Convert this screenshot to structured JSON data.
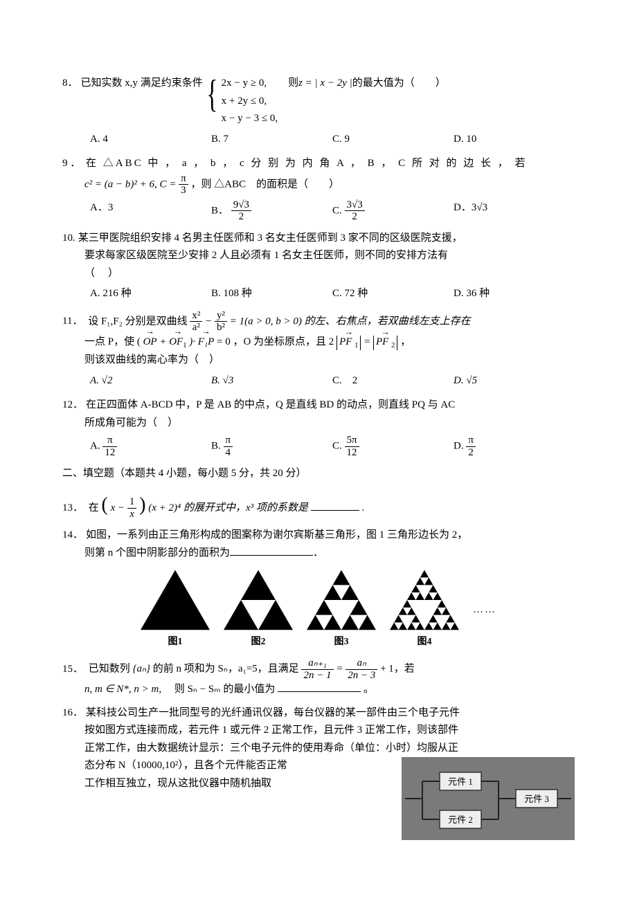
{
  "q8": {
    "num": "8．",
    "pre": "已知实数 x,y 满足约束条件",
    "sys": [
      "2x − y ≥ 0,",
      "x + 2y ≤ 0,",
      "x − y − 3 ≤ 0,"
    ],
    "mid": "　则",
    "expr": "z = | x − 2y |",
    "post": "的最大值为（　　）",
    "opts": [
      "A. 4",
      "B. 7",
      "C. 9",
      "D. 10"
    ]
  },
  "q9": {
    "num": "9 ．",
    "head": "在 △ABC 中 ， a ， b ， c 分 别 为 内 角 A ， B ， C 所 对 的 边 长 ， 若",
    "line2a": "c² = (a − b)² + 6, C = ",
    "line2_frac": {
      "n": "π",
      "d": "3"
    },
    "line2b": "，则 △ABC　的面积是（　　）",
    "optA": "A．3",
    "optB_pre": "B．",
    "optB_frac": {
      "n": "9√3",
      "d": "2"
    },
    "optC_pre": "C. ",
    "optC_frac": {
      "n": "3√3",
      "d": "2"
    },
    "optD": "D．3√3"
  },
  "q10": {
    "num": "10.",
    "l1": "某三甲医院组织安排 4 名男主任医师和 3 名女主任医师到 3 家不同的区级医院支援，",
    "l2": "要求每家区级医院至少安排 2 人且必须有 1 名女主任医师，则不同的安排方法有",
    "l3": "（　）",
    "opts": [
      "A. 216 种",
      "B. 108 种",
      "C. 72 种",
      "D. 36 种"
    ]
  },
  "q11": {
    "num": "11．",
    "l1a": "设 F₁,F₂ 分别是双曲线",
    "hyp_l": {
      "n": "x²",
      "d": "a²"
    },
    "minus": " − ",
    "hyp_r": {
      "n": "y²",
      "d": "b²"
    },
    "l1b": " = 1(a > 0, b > 0) 的左、右焦点，若双曲线左支上存在",
    "l2a": "一点 P，使 (",
    "vecOP": "OP",
    "plus": " + ",
    "vecOF1": "OF",
    "of1sub": "1",
    "dot": ")·",
    "vecF1P": "F₁P",
    "l2b": " = 0 ，O 为坐标原点，且 2 ",
    "pf1": "PF",
    "pf1sub": "1",
    "eq": " = ",
    "pf2": "PF",
    "pf2sub": "2",
    "l2c": "，",
    "l3": "则该双曲线的离心率为（　）",
    "opts": [
      "A.  √2",
      "B.  √3",
      "C.　2",
      "D.  √5"
    ]
  },
  "q12": {
    "num": "12．",
    "l1": "在正四面体 A-BCD 中，P 是 AB 的中点，Q 是直线 BD 的动点，则直线 PQ 与 AC",
    "l2": "所成角可能为（　）",
    "optA_pre": "A. ",
    "optA_f": {
      "n": "π",
      "d": "12"
    },
    "optB_pre": "B. ",
    "optB_f": {
      "n": "π",
      "d": "4"
    },
    "optC_pre": "C. ",
    "optC_f": {
      "n": "5π",
      "d": "12"
    },
    "optD_pre": "D. ",
    "optD_f": {
      "n": "π",
      "d": "2"
    }
  },
  "section2": "二、填空题（本题共 4 小题，每小题 5 分，共 20 分）",
  "q13": {
    "num": "13．",
    "a": "在",
    "paren_l": "(",
    "inner_x": "x − ",
    "inner_frac": {
      "n": "1",
      "d": "x"
    },
    "paren_r": ")",
    "b": "(x + 2)⁴ 的展开式中，x³ 项的系数是",
    "c": "."
  },
  "q14": {
    "num": "14．",
    "l1": "如图，一系列由正三角形构成的图案称为谢尔宾斯基三角形，图 1 三角形边长为 2，",
    "l2": "则第 n 个图中阴影部分的面积为",
    "l3": "．",
    "labels": [
      "图1",
      "图2",
      "图3",
      "图4"
    ],
    "ellipsis": "……",
    "svg": {
      "size": 100,
      "fill": "#000000"
    }
  },
  "q15": {
    "num": "15．",
    "l1a": "已知数列",
    "seq": "{aₙ}",
    "l1b": "的前 n 项和为 Sₙ，a₁=5，且满足 ",
    "fr1": {
      "n": "aₙ₊₁",
      "d": "2n − 1"
    },
    "eq": " = ",
    "fr2": {
      "n": "aₙ",
      "d": "2n − 3"
    },
    "l1c": " + 1，若",
    "l2a": "n, m ∈ N*, n > m,",
    "l2b": "　则 Sₙ − Sₘ 的最小值为",
    "l2c": "。"
  },
  "q16": {
    "num": "16．",
    "l1": "某科技公司生产一批同型号的光纤通讯仪器，每台仪器的某一部件由三个电子元件",
    "l2": "按如图方式连接而成，若元件 1 或元件 2 正常工作，且元件 3 正常工作，则该部件",
    "l3": "正常工作，由大数据统计显示：三个电子元件的使用寿命（单位：小时）均服从正",
    "l4": "态分布 N（10000,10²），且各个元件能否正常",
    "l5": "工作相互独立，现从这批仪器中随机抽取",
    "circuit": {
      "bg": "#7a7a7a",
      "box_fill": "#eeeeee",
      "box_border": "#333333",
      "wire": "#222222",
      "labels": [
        "元件 1",
        "元件 2",
        "元件 3"
      ],
      "label_font": 13
    }
  }
}
